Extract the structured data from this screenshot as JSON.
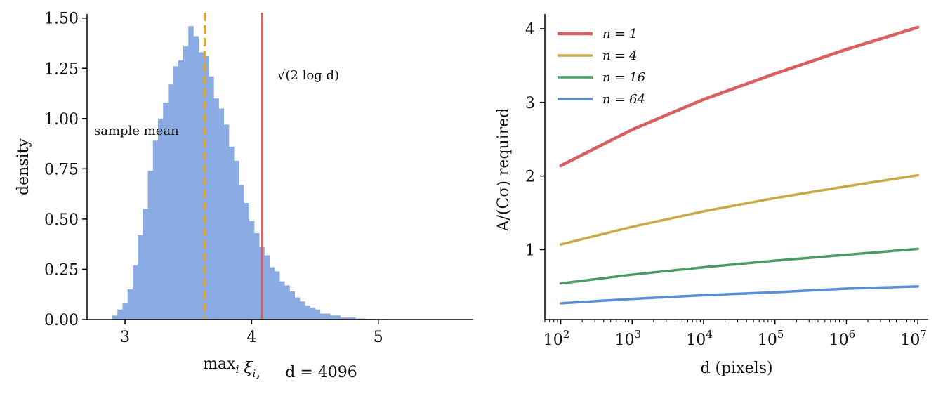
{
  "chart_data": [
    {
      "type": "bar",
      "subtype": "histogram",
      "xlabel": "max_i ξ_i,     d = 4096",
      "ylabel": "density",
      "xlim": [
        2.7,
        5.75
      ],
      "ylim": [
        0,
        1.52
      ],
      "xticks": [
        3,
        4,
        5
      ],
      "yticks": [
        0,
        0.25,
        0.5,
        0.75,
        1.0,
        1.25,
        1.5
      ],
      "xtick_labels": [
        "3",
        "4",
        "5"
      ],
      "ytick_labels": [
        "0.00",
        "0.25",
        "0.50",
        "0.75",
        "1.00",
        "1.25",
        "1.50"
      ],
      "grid": false,
      "bar_color": "#8aabe3",
      "bin_start": 2.9,
      "bin_width": 0.04,
      "values": [
        0.02,
        0.05,
        0.08,
        0.15,
        0.27,
        0.42,
        0.55,
        0.74,
        0.89,
        1.0,
        1.08,
        1.17,
        1.26,
        1.29,
        1.36,
        1.46,
        1.41,
        1.33,
        1.31,
        1.21,
        1.1,
        1.05,
        0.97,
        0.86,
        0.79,
        0.67,
        0.58,
        0.49,
        0.43,
        0.36,
        0.32,
        0.26,
        0.24,
        0.19,
        0.17,
        0.14,
        0.11,
        0.09,
        0.07,
        0.06,
        0.05,
        0.03,
        0.03,
        0.02,
        0.02,
        0.01,
        0.01,
        0.01,
        0.005,
        0.005,
        0.003,
        0.003,
        0.002,
        0.002,
        0.001,
        0.001,
        0.001,
        0.001,
        0.001,
        0.001,
        0.001,
        0.001,
        0.001,
        0.001,
        0.001,
        0.001,
        0.001
      ],
      "vlines": [
        {
          "x": 3.63,
          "label": "sample mean",
          "color": "#d4a843",
          "style": "dashed"
        },
        {
          "x": 4.08,
          "label": "√(2 log d)",
          "color": "#d9605f",
          "style": "solid"
        }
      ]
    },
    {
      "type": "line",
      "xscale": "log",
      "xlabel": "d (pixels)",
      "ylabel": "A/(Cσ) required",
      "xlim": [
        60,
        14000000
      ],
      "ylim": [
        0.05,
        4.2
      ],
      "xticks": [
        100,
        1000,
        10000,
        100000,
        1000000,
        10000000
      ],
      "xtick_labels": [
        {
          "base": "10",
          "exp": "2"
        },
        {
          "base": "10",
          "exp": "3"
        },
        {
          "base": "10",
          "exp": "4"
        },
        {
          "base": "10",
          "exp": "5"
        },
        {
          "base": "10",
          "exp": "6"
        },
        {
          "base": "10",
          "exp": "7"
        }
      ],
      "yticks": [
        1,
        2,
        3,
        4
      ],
      "ytick_labels": [
        "1",
        "2",
        "3",
        "4"
      ],
      "grid": false,
      "legend_position": "top-left",
      "x": [
        100,
        1000,
        10000,
        100000,
        1000000,
        10000000
      ],
      "series": [
        {
          "name": "n = 1",
          "color": "#d9605f",
          "values": [
            2.14,
            2.63,
            3.04,
            3.39,
            3.72,
            4.02
          ]
        },
        {
          "name": "n = 4",
          "color": "#c9a848",
          "values": [
            1.07,
            1.31,
            1.52,
            1.7,
            1.86,
            2.01
          ]
        },
        {
          "name": "n = 16",
          "color": "#4a9a64",
          "values": [
            0.54,
            0.66,
            0.76,
            0.85,
            0.93,
            1.01
          ]
        },
        {
          "name": "n = 64",
          "color": "#5b8ed6",
          "values": [
            0.27,
            0.33,
            0.38,
            0.42,
            0.47,
            0.5
          ]
        }
      ]
    }
  ]
}
